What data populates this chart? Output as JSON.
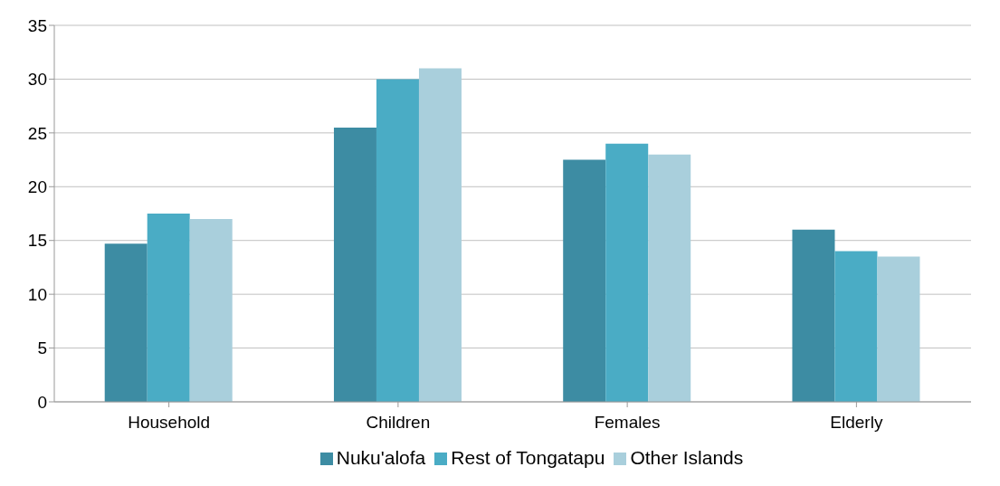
{
  "chart_data": {
    "type": "bar",
    "categories": [
      "Household",
      "Children",
      "Females",
      "Elderly"
    ],
    "series": [
      {
        "name": "Nuku'alofa",
        "color": "#3d8ca3",
        "values": [
          14.7,
          25.5,
          22.5,
          16
        ]
      },
      {
        "name": "Rest of Tongatapu",
        "color": "#4aacc5",
        "values": [
          17.5,
          30,
          24,
          14
        ]
      },
      {
        "name": "Other Islands",
        "color": "#a9cfdc",
        "values": [
          17,
          31,
          23,
          13.5
        ]
      }
    ],
    "ylim": [
      0,
      35
    ],
    "yticks": [
      0,
      5,
      10,
      15,
      20,
      25,
      30,
      35
    ],
    "grid": "y",
    "legend": "bottom"
  }
}
